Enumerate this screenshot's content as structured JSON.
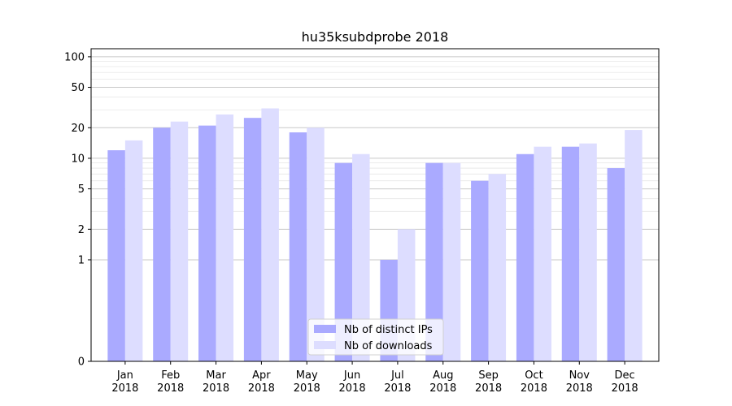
{
  "chart_data": {
    "type": "bar",
    "title": "hu35ksubdprobe 2018",
    "xlabel": "",
    "ylabel": "",
    "y_scale": "symlog",
    "ylim": [
      0,
      120
    ],
    "y_ticks": [
      0,
      1,
      2,
      5,
      10,
      20,
      50,
      100
    ],
    "grid": true,
    "legend_position": "bottom-center",
    "categories": [
      [
        "Jan",
        "2018"
      ],
      [
        "Feb",
        "2018"
      ],
      [
        "Mar",
        "2018"
      ],
      [
        "Apr",
        "2018"
      ],
      [
        "May",
        "2018"
      ],
      [
        "Jun",
        "2018"
      ],
      [
        "Jul",
        "2018"
      ],
      [
        "Aug",
        "2018"
      ],
      [
        "Sep",
        "2018"
      ],
      [
        "Oct",
        "2018"
      ],
      [
        "Nov",
        "2018"
      ],
      [
        "Dec",
        "2018"
      ]
    ],
    "series": [
      {
        "name": "Nb of distinct IPs",
        "color": "#aaaaff",
        "values": [
          12,
          20,
          21,
          25,
          18,
          9,
          1,
          9,
          6,
          11,
          13,
          8
        ]
      },
      {
        "name": "Nb of downloads",
        "color": "#ddddff",
        "values": [
          15,
          23,
          27,
          31,
          20,
          11,
          2,
          9,
          7,
          13,
          14,
          19
        ]
      }
    ]
  }
}
